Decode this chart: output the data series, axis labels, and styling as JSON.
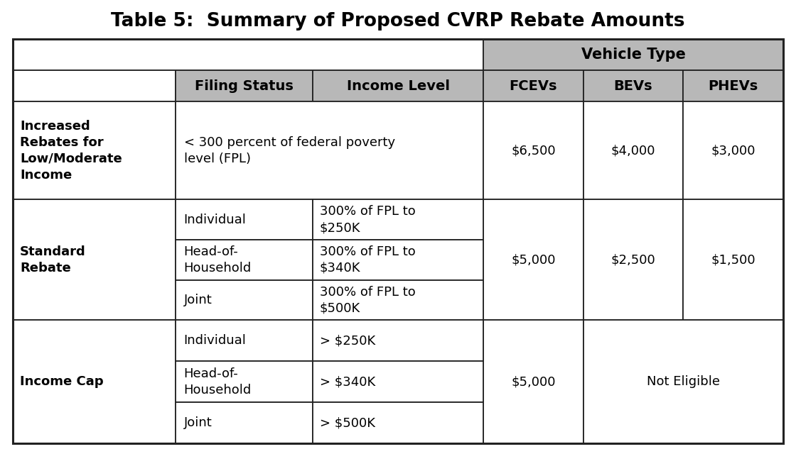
{
  "title": "Table 5:  Summary of Proposed CVRP Rebate Amounts",
  "title_fontsize": 19,
  "title_fontweight": "bold",
  "header_bg": "#b8b8b8",
  "white_bg": "#ffffff",
  "border_color": "#222222",
  "text_color": "#000000",
  "vehicle_type_header": "Vehicle Type",
  "sub_headers": [
    "Filing Status",
    "Income Level",
    "FCEVs",
    "BEVs",
    "PHEVs"
  ],
  "row1_category": "Increased\nRebates for\nLow/Moderate\nIncome",
  "row1_income": "< 300 percent of federal poverty\nlevel (FPL)",
  "row1_fcev": "$6,500",
  "row1_bev": "$4,000",
  "row1_phev": "$3,000",
  "row2_category": "Standard\nRebate",
  "row2_fcev": "$5,000",
  "row2_bev": "$2,500",
  "row2_phev": "$1,500",
  "row2_sub": [
    [
      "Individual",
      "300% of FPL to\n$250K"
    ],
    [
      "Head-of-\nHousehold",
      "300% of FPL to\n$340K"
    ],
    [
      "Joint",
      "300% of FPL to\n$500K"
    ]
  ],
  "row3_category": "Income Cap",
  "row3_fcev": "$5,000",
  "row3_bev_phev": "Not Eligible",
  "row3_sub": [
    [
      "Individual",
      "> $250K"
    ],
    [
      "Head-of-\nHousehold",
      "> $340K"
    ],
    [
      "Joint",
      "> $500K"
    ]
  ]
}
